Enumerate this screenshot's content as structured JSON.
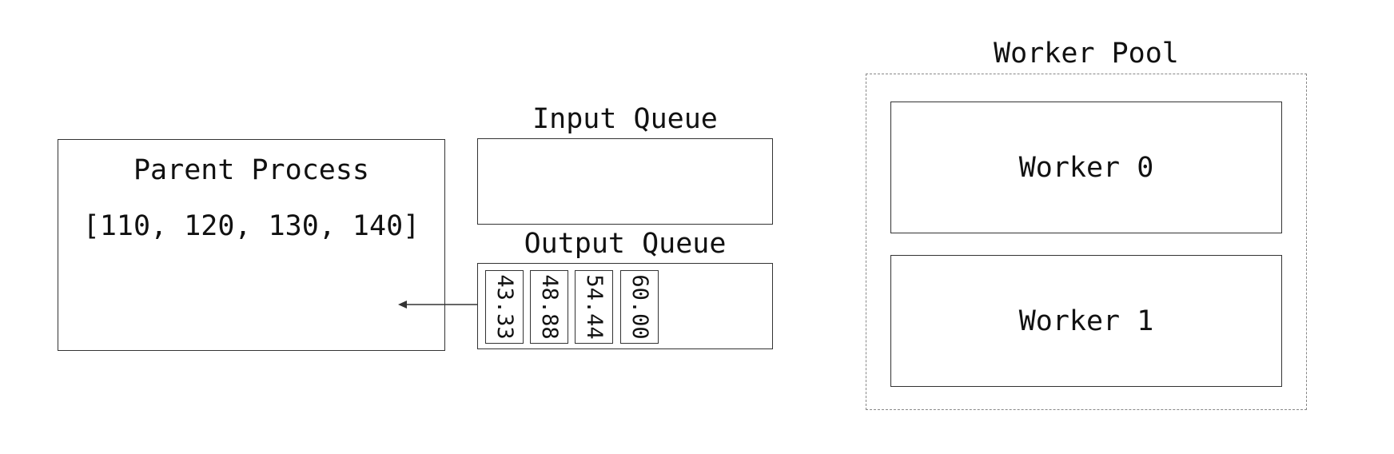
{
  "parent": {
    "title": "Parent Process",
    "list": "[110, 120, 130, 140]"
  },
  "input_queue": {
    "title": "Input Queue"
  },
  "output_queue": {
    "title": "Output Queue",
    "items": [
      "43.33",
      "48.88",
      "54.44",
      "60.00"
    ]
  },
  "worker_pool": {
    "title": "Worker Pool",
    "workers": [
      "Worker 0",
      "Worker 1"
    ]
  }
}
